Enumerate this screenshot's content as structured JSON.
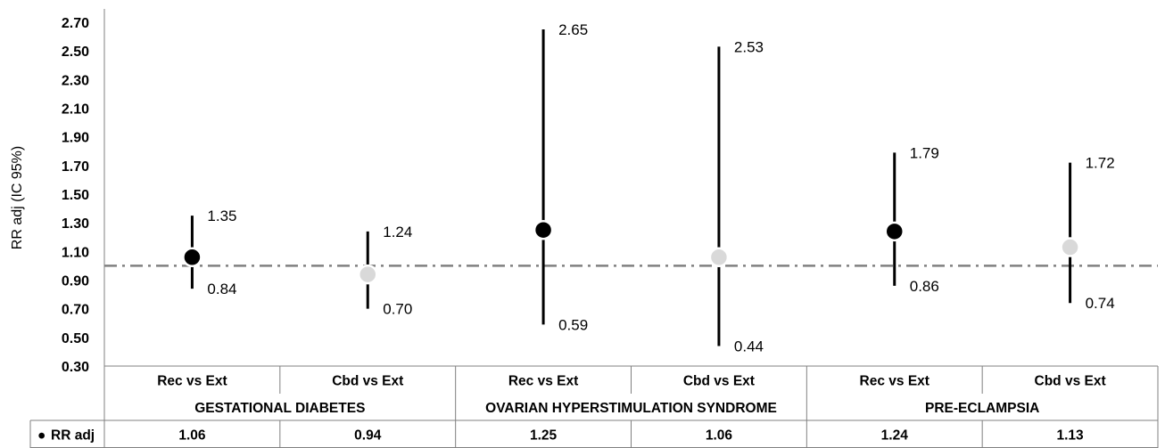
{
  "chart_data": {
    "type": "scatter",
    "ylabel": "RR  adj (IC 95%)",
    "ylim": [
      0.3,
      2.7
    ],
    "yticks": [
      "0.30",
      "0.50",
      "0.70",
      "0.90",
      "1.10",
      "1.30",
      "1.50",
      "1.70",
      "1.90",
      "2.10",
      "2.30",
      "2.50",
      "2.70"
    ],
    "reference_line": 1.0,
    "categories": [
      "Rec vs Ext",
      "Cbd vs Ext",
      "Rec vs Ext",
      "Cbd vs Ext",
      "Rec vs Ext",
      "Cbd vs Ext"
    ],
    "groups": [
      {
        "label": "GESTATIONAL DIABETES",
        "span": 2
      },
      {
        "label": "OVARIAN HYPERSTIMULATION SYNDROME",
        "span": 2
      },
      {
        "label": "PRE-ECLAMPSIA",
        "span": 2
      }
    ],
    "series": [
      {
        "name": "RR adj",
        "values": [
          1.06,
          0.94,
          1.25,
          1.06,
          1.24,
          1.13
        ],
        "value_labels": [
          "1.06",
          "0.94",
          "1.25",
          "1.06",
          "1.24",
          "1.13"
        ],
        "ci_upper": [
          1.35,
          1.24,
          2.65,
          2.53,
          1.79,
          1.72
        ],
        "ci_lower": [
          0.84,
          0.7,
          0.59,
          0.44,
          0.86,
          0.74
        ],
        "ci_upper_labels": [
          "1.35",
          "1.24",
          "2.65",
          "2.53",
          "1.79",
          "1.72"
        ],
        "ci_lower_labels": [
          "0.84",
          "0.70",
          "0.59",
          "0.44",
          "0.86",
          "0.74"
        ],
        "marker_colors": [
          "#000000",
          "#d9d9d9",
          "#000000",
          "#d9d9d9",
          "#000000",
          "#d9d9d9"
        ]
      }
    ],
    "table_row_label": "RR adj",
    "table_marker": "●",
    "colors": {
      "reference_line": "#808080",
      "axis": "#808080",
      "ci": "#000000",
      "marker_edge": "#ffffff"
    }
  }
}
